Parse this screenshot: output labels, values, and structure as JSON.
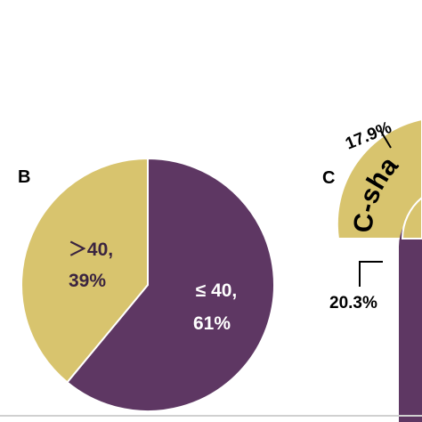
{
  "colors": {
    "purple": "#5e3763",
    "gold": "#d8c46e",
    "white": "#ffffff"
  },
  "chart_data": [
    {
      "type": "pie",
      "panel": "B",
      "slices": [
        {
          "name": "≤ 40,",
          "value": 61,
          "value_label": "61%",
          "color": "#5e3763",
          "label_color": "#ffffff"
        },
        {
          "name": "＞40,",
          "value": 39,
          "value_label": "39%",
          "color": "#d8c46e",
          "label_color": "#3a2440"
        }
      ]
    },
    {
      "type": "pie",
      "panel": "C",
      "partial": true,
      "arc_label": "C-sha",
      "annotations": [
        {
          "label": "17.9%",
          "value": 17.9
        },
        {
          "label": "20.3%",
          "value": 20.3
        }
      ]
    }
  ]
}
